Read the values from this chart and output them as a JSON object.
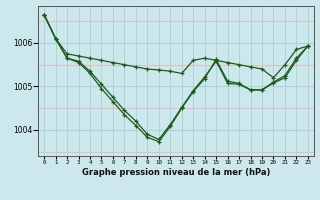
{
  "title": "Graphe pression niveau de la mer (hPa)",
  "bg_color": "#cce8ec",
  "grid_color_major": "#aad0d8",
  "grid_color_minor": "#f0b8b8",
  "line_color": "#1a5c1a",
  "x_labels": [
    "0",
    "1",
    "2",
    "3",
    "4",
    "5",
    "6",
    "7",
    "8",
    "9",
    "10",
    "11",
    "12",
    "13",
    "14",
    "15",
    "16",
    "17",
    "18",
    "19",
    "20",
    "21",
    "22",
    "23"
  ],
  "ylim": [
    1003.4,
    1006.85
  ],
  "yticks": [
    1004,
    1005,
    1006
  ],
  "series1_x": [
    0,
    1,
    2,
    3,
    4,
    5,
    6,
    7,
    8,
    9,
    10,
    11,
    12,
    13,
    14,
    15,
    16,
    17,
    18,
    19,
    20,
    21,
    22,
    23
  ],
  "series1": [
    1006.65,
    1006.1,
    1005.75,
    1005.7,
    1005.65,
    1005.6,
    1005.55,
    1005.5,
    1005.45,
    1005.4,
    1005.38,
    1005.35,
    1005.3,
    1005.6,
    1005.65,
    1005.6,
    1005.55,
    1005.5,
    1005.45,
    1005.4,
    1005.2,
    1005.5,
    1005.85,
    1005.93
  ],
  "series2_x": [
    0,
    1,
    2,
    3,
    4,
    5,
    6,
    7,
    8,
    9,
    10,
    11,
    12,
    13,
    14,
    15,
    16,
    17,
    18,
    19,
    20,
    21,
    22,
    23
  ],
  "series2": [
    1006.65,
    1006.1,
    1005.65,
    1005.55,
    1005.3,
    1004.95,
    1004.65,
    1004.35,
    1004.1,
    1003.83,
    1003.73,
    1004.08,
    1004.5,
    1004.88,
    1005.18,
    1005.62,
    1005.12,
    1005.07,
    1004.92,
    1004.92,
    1005.08,
    1005.2,
    1005.6,
    1005.93
  ],
  "series3_x": [
    0,
    1,
    2,
    3,
    4,
    5,
    6,
    7,
    8,
    9,
    10,
    11,
    12,
    13,
    14,
    15,
    16,
    17,
    18,
    19,
    20,
    21,
    22,
    23
  ],
  "series3": [
    1006.65,
    1006.1,
    1005.65,
    1005.58,
    1005.35,
    1005.05,
    1004.75,
    1004.45,
    1004.2,
    1003.9,
    1003.78,
    1004.12,
    1004.52,
    1004.9,
    1005.22,
    1005.58,
    1005.07,
    1005.05,
    1004.92,
    1004.92,
    1005.1,
    1005.25,
    1005.65,
    1005.93
  ]
}
